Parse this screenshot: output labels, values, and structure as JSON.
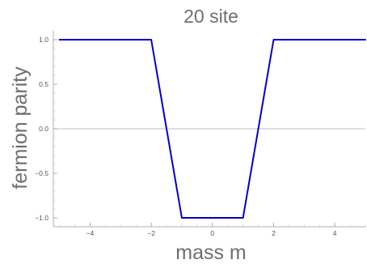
{
  "chart_data": {
    "type": "line",
    "title": "20 site",
    "xlabel": "mass m",
    "ylabel": "fermion parity",
    "xlim": [
      -5.2,
      5
    ],
    "ylim": [
      -1.1,
      1.1
    ],
    "x_ticks": [
      -4,
      -2,
      0,
      2,
      4
    ],
    "y_ticks": [
      1.0,
      0.5,
      0.0,
      -0.5,
      -1.0
    ],
    "x_tick_labels": [
      "−4",
      "−2",
      "0",
      "2",
      "4"
    ],
    "y_tick_labels": [
      "1.0",
      "0.5",
      "0.0",
      "−0.5",
      "−1.0"
    ],
    "grid": false,
    "reference_line_y": 0,
    "series": [
      {
        "color": "#0000cc",
        "x": [
          -5,
          -2,
          -1,
          1,
          2,
          5
        ],
        "y": [
          1,
          1,
          -1,
          -1,
          1,
          1
        ]
      }
    ]
  }
}
